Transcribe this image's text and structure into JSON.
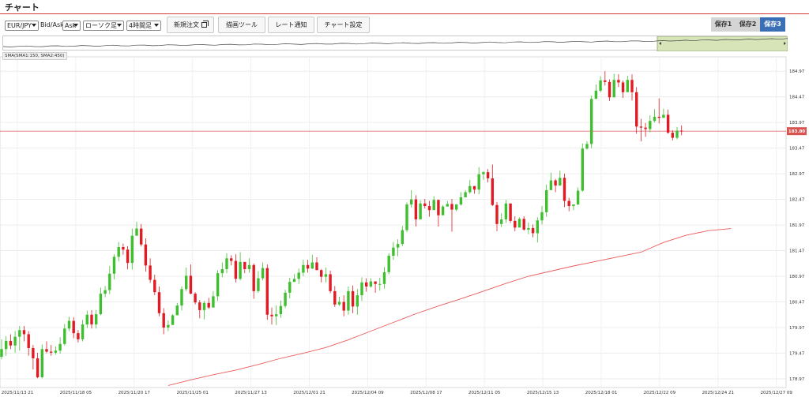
{
  "window": {
    "title": "チャート"
  },
  "toolbar": {
    "pair": "EUR/JPY",
    "bid_ask_label": "Bid/Ask",
    "bid_ask_value": "Ask",
    "chart_type": "ローソク足",
    "timeframe": "4時間足",
    "new_order": "新規注文",
    "drawing_tools": "描画ツール",
    "rate_alert": "レート通知",
    "chart_settings": "チャート設定",
    "saves": [
      "保存1",
      "保存2",
      "保存3"
    ],
    "active_save": 2
  },
  "indicator_label": "SMA(SMA1:150, SMA2:450)",
  "current_price": "183.80",
  "colors": {
    "up": "#3fbf2f",
    "down": "#e01b24",
    "sma": "#ec5b5b",
    "price_line": "#e07070",
    "price_tag": "#d9534f",
    "navigator_fill": "#d6e4b8"
  },
  "chart_data": {
    "type": "candlestick",
    "symbol": "EUR/JPY",
    "timeframe": "4時間足",
    "ylim": [
      178.8,
      185.25
    ],
    "y_ticks": [
      "184.97",
      "184.47",
      "183.97",
      "183.47",
      "182.97",
      "182.47",
      "181.97",
      "181.47",
      "180.97",
      "180.47",
      "179.97",
      "179.47",
      "178.97"
    ],
    "x_ticks": [
      "2025/11/13 21",
      "2025/11/18 05",
      "2025/11/20 17",
      "2025/11/25 01",
      "2025/11/27 13",
      "2025/12/01 21",
      "2025/12/04 09",
      "2025/12/08 17",
      "2025/12/11 05",
      "2025/12/15 13",
      "2025/12/18 01",
      "2025/12/22 09",
      "2025/12/24 21",
      "2025/12/27 09"
    ],
    "current_price": 183.8,
    "sma_line": [
      [
        37,
        178.84
      ],
      [
        42,
        178.95
      ],
      [
        47,
        179.05
      ],
      [
        52,
        179.14
      ],
      [
        57,
        179.25
      ],
      [
        62,
        179.37
      ],
      [
        67,
        179.47
      ],
      [
        72,
        179.58
      ],
      [
        77,
        179.73
      ],
      [
        82,
        179.9
      ],
      [
        87,
        180.07
      ],
      [
        92,
        180.24
      ],
      [
        97,
        180.39
      ],
      [
        102,
        180.53
      ],
      [
        107,
        180.68
      ],
      [
        112,
        180.83
      ],
      [
        117,
        180.97
      ],
      [
        122,
        181.07
      ],
      [
        127,
        181.17
      ],
      [
        132,
        181.26
      ],
      [
        137,
        181.35
      ],
      [
        142,
        181.44
      ],
      [
        147,
        181.63
      ],
      [
        152,
        181.77
      ],
      [
        157,
        181.86
      ],
      [
        162,
        181.9
      ]
    ],
    "candles": [
      [
        0,
        179.4,
        179.55,
        179.74,
        179.35
      ],
      [
        1,
        179.55,
        179.71,
        179.8,
        179.42
      ],
      [
        2,
        179.71,
        179.62,
        179.84,
        179.55
      ],
      [
        3,
        179.62,
        179.79,
        179.9,
        179.48
      ],
      [
        4,
        179.79,
        179.92,
        180.0,
        179.52
      ],
      [
        5,
        179.92,
        179.84,
        180.0,
        179.7
      ],
      [
        6,
        179.84,
        179.57,
        179.9,
        179.42
      ],
      [
        7,
        179.57,
        179.37,
        179.63,
        179.15
      ],
      [
        8,
        179.37,
        179.0,
        179.48,
        178.98
      ],
      [
        9,
        179.0,
        179.55,
        179.64,
        178.98
      ],
      [
        10,
        179.55,
        179.5,
        179.7,
        179.47
      ],
      [
        11,
        179.5,
        179.48,
        179.63,
        179.42
      ],
      [
        12,
        179.48,
        179.52,
        179.6,
        179.44
      ],
      [
        13,
        179.52,
        179.65,
        179.78,
        179.46
      ],
      [
        14,
        179.65,
        179.95,
        180.04,
        179.62
      ],
      [
        15,
        179.95,
        180.1,
        180.18,
        179.9
      ],
      [
        16,
        180.1,
        179.86,
        180.17,
        179.76
      ],
      [
        17,
        179.86,
        179.74,
        179.92,
        179.68
      ],
      [
        18,
        179.74,
        180.03,
        180.12,
        179.7
      ],
      [
        19,
        180.03,
        180.22,
        180.3,
        179.96
      ],
      [
        20,
        180.22,
        180.03,
        180.31,
        179.95
      ],
      [
        21,
        180.03,
        180.23,
        180.31,
        179.95
      ],
      [
        22,
        180.23,
        180.63,
        180.75,
        180.21
      ],
      [
        23,
        180.63,
        180.7,
        180.78,
        180.56
      ],
      [
        24,
        180.7,
        181.02,
        181.17,
        180.62
      ],
      [
        25,
        181.02,
        181.35,
        181.4,
        180.91
      ],
      [
        26,
        181.35,
        181.54,
        181.64,
        181.26
      ],
      [
        27,
        181.54,
        181.49,
        181.61,
        181.39
      ],
      [
        28,
        181.49,
        181.23,
        181.56,
        181.11
      ],
      [
        29,
        181.23,
        181.76,
        181.9,
        181.1
      ],
      [
        30,
        181.76,
        181.9,
        182.03,
        181.82
      ],
      [
        31,
        181.9,
        181.59,
        181.99,
        181.55
      ],
      [
        32,
        181.59,
        181.18,
        181.71,
        181.06
      ],
      [
        33,
        181.18,
        180.9,
        181.32,
        180.84
      ],
      [
        34,
        180.9,
        180.66,
        181.0,
        180.6
      ],
      [
        35,
        180.66,
        180.25,
        180.77,
        180.19
      ],
      [
        36,
        180.25,
        179.97,
        180.35,
        179.84
      ],
      [
        37,
        179.97,
        180.02,
        180.11,
        179.9
      ],
      [
        38,
        180.02,
        180.21,
        180.23,
        180.14
      ],
      [
        39,
        180.21,
        180.4,
        180.45,
        180.32
      ],
      [
        40,
        180.4,
        180.72,
        180.77,
        180.3
      ],
      [
        41,
        180.72,
        180.98,
        181.14,
        180.68
      ],
      [
        42,
        180.98,
        180.63,
        181.2,
        180.62
      ],
      [
        43,
        180.63,
        180.46,
        180.66,
        180.42
      ],
      [
        44,
        180.46,
        180.31,
        180.51,
        180.15
      ],
      [
        45,
        180.31,
        180.45,
        180.49,
        180.13
      ],
      [
        46,
        180.45,
        180.36,
        180.55,
        180.33
      ],
      [
        47,
        180.36,
        180.58,
        180.68,
        180.46
      ],
      [
        48,
        180.58,
        181.03,
        181.09,
        180.49
      ],
      [
        49,
        181.03,
        181.11,
        181.24,
        180.95
      ],
      [
        50,
        181.11,
        181.32,
        181.42,
        181.03
      ],
      [
        51,
        181.32,
        181.27,
        181.38,
        181.18
      ],
      [
        52,
        181.27,
        180.92,
        181.4,
        180.85
      ],
      [
        53,
        180.92,
        181.25,
        181.44,
        180.89
      ],
      [
        54,
        181.25,
        181.11,
        181.23,
        181.03
      ],
      [
        55,
        181.11,
        181.19,
        181.32,
        181.04
      ],
      [
        56,
        181.19,
        180.68,
        181.22,
        180.53
      ],
      [
        57,
        180.68,
        180.93,
        181.07,
        180.65
      ],
      [
        58,
        180.93,
        181.13,
        181.24,
        180.89
      ],
      [
        59,
        181.13,
        180.22,
        181.2,
        180.12
      ],
      [
        60,
        180.22,
        180.19,
        180.36,
        180.03
      ],
      [
        61,
        180.19,
        180.23,
        180.4,
        180.02
      ],
      [
        62,
        180.23,
        180.39,
        180.5,
        180.16
      ],
      [
        63,
        180.39,
        180.65,
        180.71,
        180.35
      ],
      [
        64,
        180.65,
        180.86,
        180.94,
        180.54
      ],
      [
        65,
        180.86,
        180.92,
        181.01,
        180.86
      ],
      [
        66,
        180.92,
        181.04,
        181.12,
        180.82
      ],
      [
        67,
        181.04,
        181.19,
        181.29,
        180.97
      ],
      [
        68,
        181.19,
        181.12,
        181.29,
        181.04
      ],
      [
        69,
        181.12,
        181.24,
        181.39,
        181.11
      ],
      [
        70,
        181.24,
        181.09,
        181.34,
        181.09
      ],
      [
        71,
        181.09,
        180.96,
        181.11,
        180.85
      ],
      [
        72,
        180.96,
        181.01,
        181.14,
        180.85
      ],
      [
        73,
        181.01,
        180.68,
        181.08,
        180.64
      ],
      [
        74,
        180.68,
        180.42,
        180.78,
        180.37
      ],
      [
        75,
        180.42,
        180.47,
        180.57,
        180.39
      ],
      [
        76,
        180.47,
        180.3,
        180.6,
        180.19
      ],
      [
        77,
        180.3,
        180.68,
        180.77,
        180.22
      ],
      [
        78,
        180.68,
        180.38,
        180.79,
        180.25
      ],
      [
        79,
        180.38,
        180.6,
        180.72,
        180.22
      ],
      [
        80,
        180.6,
        180.85,
        180.95,
        180.49
      ],
      [
        81,
        180.85,
        180.77,
        180.93,
        180.67
      ],
      [
        82,
        180.77,
        180.87,
        180.93,
        180.75
      ],
      [
        83,
        180.87,
        180.82,
        180.86,
        180.65
      ],
      [
        84,
        180.82,
        180.82,
        180.94,
        180.69
      ],
      [
        85,
        180.82,
        181.05,
        181.15,
        180.73
      ],
      [
        86,
        181.05,
        181.37,
        181.42,
        181.01
      ],
      [
        87,
        181.37,
        181.53,
        181.64,
        181.29
      ],
      [
        88,
        181.53,
        181.6,
        181.69,
        181.36
      ],
      [
        89,
        181.6,
        181.87,
        181.95,
        181.56
      ],
      [
        90,
        181.87,
        182.37,
        182.41,
        181.83
      ],
      [
        91,
        182.37,
        182.47,
        182.65,
        182.31
      ],
      [
        92,
        182.47,
        182.08,
        182.55,
        181.94
      ],
      [
        93,
        182.08,
        182.39,
        182.45,
        182.32
      ],
      [
        94,
        182.39,
        182.34,
        182.48,
        182.29
      ],
      [
        95,
        182.34,
        182.26,
        182.44,
        182.13
      ],
      [
        96,
        182.26,
        182.46,
        182.53,
        182.44
      ],
      [
        97,
        182.46,
        182.16,
        182.46,
        181.94
      ],
      [
        98,
        182.16,
        182.33,
        182.36,
        182.2
      ],
      [
        99,
        182.33,
        182.38,
        182.44,
        182.35
      ],
      [
        100,
        182.38,
        182.27,
        182.48,
        181.84
      ],
      [
        101,
        182.27,
        182.37,
        182.38,
        182.24
      ],
      [
        102,
        182.37,
        182.51,
        182.61,
        182.35
      ],
      [
        103,
        182.51,
        182.61,
        182.65,
        182.55
      ],
      [
        104,
        182.61,
        182.73,
        182.85,
        182.58
      ],
      [
        105,
        182.73,
        182.66,
        182.73,
        182.58
      ],
      [
        106,
        182.66,
        182.96,
        183.1,
        182.57
      ],
      [
        107,
        182.96,
        183.0,
        183.02,
        182.85
      ],
      [
        108,
        183.0,
        182.88,
        183.06,
        182.8
      ],
      [
        109,
        182.88,
        182.36,
        183.15,
        182.34
      ],
      [
        110,
        182.36,
        181.99,
        182.42,
        181.85
      ],
      [
        111,
        181.99,
        182.08,
        182.2,
        181.93
      ],
      [
        112,
        182.08,
        182.39,
        182.46,
        182.01
      ],
      [
        113,
        182.39,
        182.05,
        182.39,
        182.01
      ],
      [
        114,
        182.05,
        181.92,
        182.14,
        181.85
      ],
      [
        115,
        181.92,
        182.09,
        182.12,
        181.96
      ],
      [
        116,
        182.09,
        181.88,
        182.14,
        181.86
      ],
      [
        117,
        181.88,
        181.91,
        182.02,
        181.79
      ],
      [
        118,
        181.91,
        181.81,
        181.98,
        181.73
      ],
      [
        119,
        181.81,
        182.06,
        182.12,
        181.63
      ],
      [
        120,
        182.06,
        182.22,
        182.34,
        181.98
      ],
      [
        121,
        182.22,
        182.65,
        182.76,
        182.13
      ],
      [
        122,
        182.65,
        182.84,
        182.99,
        182.72
      ],
      [
        123,
        182.84,
        182.74,
        182.87,
        182.61
      ],
      [
        124,
        182.74,
        182.89,
        183.03,
        182.84
      ],
      [
        125,
        182.89,
        182.44,
        182.97,
        182.32
      ],
      [
        126,
        182.44,
        182.34,
        182.5,
        182.24
      ],
      [
        127,
        182.34,
        182.37,
        182.37,
        182.26
      ],
      [
        128,
        182.37,
        182.64,
        182.7,
        182.36
      ],
      [
        129,
        182.64,
        183.46,
        183.56,
        182.62
      ],
      [
        130,
        183.46,
        183.55,
        183.6,
        183.44
      ],
      [
        131,
        183.55,
        184.43,
        184.49,
        183.47
      ],
      [
        132,
        184.43,
        184.59,
        184.71,
        184.54
      ],
      [
        133,
        184.59,
        184.79,
        184.87,
        184.56
      ],
      [
        134,
        184.79,
        184.76,
        184.97,
        184.69
      ],
      [
        135,
        184.76,
        184.46,
        184.81,
        184.39
      ],
      [
        136,
        184.46,
        184.8,
        184.92,
        184.74
      ],
      [
        137,
        184.8,
        184.75,
        184.91,
        184.66
      ],
      [
        138,
        184.75,
        184.56,
        184.79,
        184.45
      ],
      [
        139,
        184.56,
        184.8,
        184.88,
        184.77
      ],
      [
        140,
        184.8,
        184.56,
        184.91,
        184.4
      ],
      [
        141,
        184.56,
        183.89,
        184.66,
        183.75
      ],
      [
        142,
        183.89,
        183.87,
        184.04,
        183.6
      ],
      [
        143,
        183.87,
        183.84,
        183.96,
        183.69
      ],
      [
        144,
        183.84,
        184.0,
        184.11,
        183.78
      ],
      [
        145,
        184.0,
        184.08,
        184.23,
        183.97
      ],
      [
        146,
        184.08,
        184.06,
        184.44,
        183.95
      ],
      [
        147,
        184.06,
        184.12,
        184.24,
        184.07
      ],
      [
        148,
        184.12,
        183.77,
        184.22,
        183.75
      ],
      [
        149,
        183.77,
        183.67,
        183.82,
        183.62
      ],
      [
        150,
        183.67,
        183.81,
        183.88,
        183.64
      ],
      [
        151,
        183.81,
        183.8,
        183.91,
        183.72
      ]
    ]
  }
}
